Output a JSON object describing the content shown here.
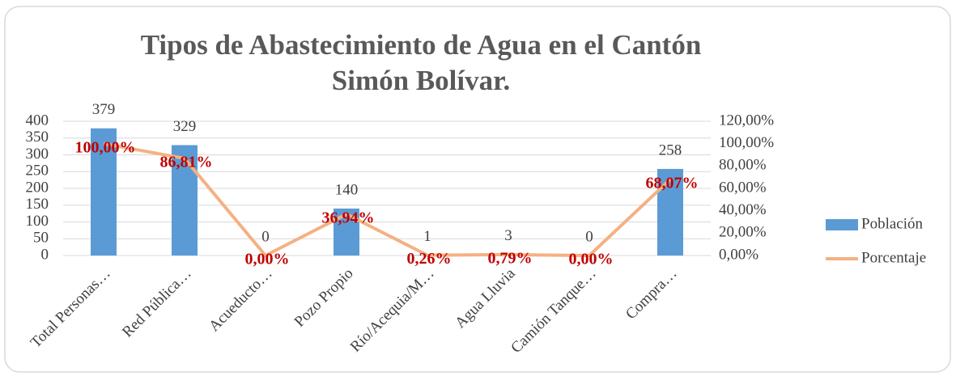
{
  "chart_data": {
    "type": "bar_line",
    "title": "Tipos de Abastecimiento de Agua en el Cantón Simón Bolívar.",
    "categories": [
      "Total Personas…",
      "Red Pública…",
      "Acueducto…",
      "Pozo Propio",
      "Río/Acequia/M…",
      "Agua Lluvia",
      "Camión Tanque…",
      "Compra…"
    ],
    "series": [
      {
        "name": "Población",
        "type": "bar",
        "color": "#5b9bd5",
        "values": [
          379,
          329,
          0,
          140,
          1,
          3,
          0,
          258
        ]
      },
      {
        "name": "Porcentaje",
        "type": "line",
        "axis": "y2",
        "color": "#f4b183",
        "values": [
          100,
          86.81,
          0,
          36.94,
          0.26,
          0.79,
          0,
          68.07
        ],
        "value_labels": [
          "100,00%",
          "86,81%",
          "0,00%",
          "36,94%",
          "0,26%",
          "0,79%",
          "0,00%",
          "68,07%"
        ]
      }
    ],
    "ylim": [
      0,
      400
    ],
    "yticks": [
      0,
      50,
      100,
      150,
      200,
      250,
      300,
      350,
      400
    ],
    "y2lim": [
      0,
      120
    ],
    "y2ticks": [
      {
        "value": 0,
        "label": "0,00%"
      },
      {
        "value": 20,
        "label": "20,00%"
      },
      {
        "value": 40,
        "label": "40,00%"
      },
      {
        "value": 60,
        "label": "60,00%"
      },
      {
        "value": 80,
        "label": "80,00%"
      },
      {
        "value": 100,
        "label": "100,00%"
      },
      {
        "value": 120,
        "label": "120,00%"
      }
    ],
    "grid": true,
    "legend": "right"
  }
}
